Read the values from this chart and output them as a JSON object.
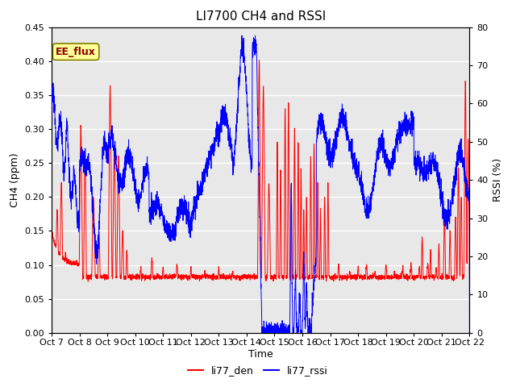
{
  "title": "LI7700 CH4 and RSSI",
  "xlabel": "Time",
  "ylabel_left": "CH4 (ppm)",
  "ylabel_right": "RSSI (%)",
  "ylim_left": [
    0,
    0.45
  ],
  "ylim_right": [
    0,
    80
  ],
  "yticks_left": [
    0.0,
    0.05,
    0.1,
    0.15,
    0.2,
    0.25,
    0.3,
    0.35,
    0.4,
    0.45
  ],
  "yticks_right": [
    0,
    10,
    20,
    30,
    40,
    50,
    60,
    70,
    80
  ],
  "xtick_labels": [
    "Oct 7",
    "Oct 8",
    "Oct 9",
    "Oct 10",
    "Oct 11",
    "Oct 12",
    "Oct 13",
    "Oct 14",
    "Oct 15",
    "Oct 16",
    "Oct 17",
    "Oct 18",
    "Oct 19",
    "Oct 20",
    "Oct 21",
    "Oct 22"
  ],
  "color_red": "#FF0000",
  "color_blue": "#0000FF",
  "legend_labels": [
    "li77_den",
    "li77_rssi"
  ],
  "annotation_text": "EE_flux",
  "background_color": "#E8E8E8",
  "grid_color": "#FFFFFF",
  "title_fontsize": 11,
  "label_fontsize": 9,
  "tick_fontsize": 8
}
